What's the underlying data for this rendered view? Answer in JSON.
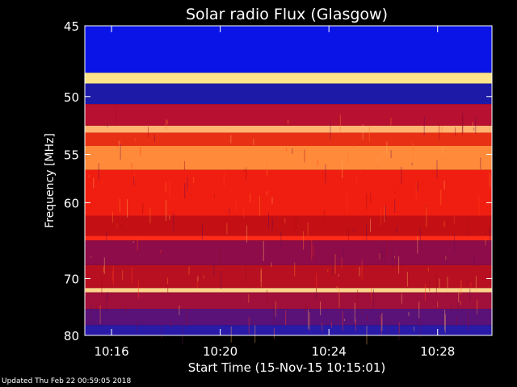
{
  "chart_data": {
    "type": "heatmap",
    "title": "Solar radio Flux (Glasgow)",
    "xlabel": "Start Time (15-Nov-15 10:15:01)",
    "ylabel": "Frequency [MHz]",
    "xlim": [
      "10:15:01",
      "10:30:00"
    ],
    "ylim": [
      45,
      80
    ],
    "y_ticks": [
      45,
      50,
      55,
      60,
      70,
      80
    ],
    "x_ticks": [
      "10:16",
      "10:20",
      "10:24",
      "10:28"
    ],
    "y_scale": "reciprocal",
    "grid": false,
    "bands": [
      {
        "from_mhz": 45,
        "to_mhz": 48.2,
        "color": "#0a14e6"
      },
      {
        "from_mhz": 48.2,
        "to_mhz": 49.0,
        "color": "#ffe58a"
      },
      {
        "from_mhz": 49.0,
        "to_mhz": 50.6,
        "color": "#1d1aa8"
      },
      {
        "from_mhz": 50.6,
        "to_mhz": 52.4,
        "color": "#b81030"
      },
      {
        "from_mhz": 52.4,
        "to_mhz": 53.0,
        "color": "#ffb370"
      },
      {
        "from_mhz": 53.0,
        "to_mhz": 54.2,
        "color": "#e83015"
      },
      {
        "from_mhz": 54.2,
        "to_mhz": 56.5,
        "color": "#ff8a3a"
      },
      {
        "from_mhz": 56.5,
        "to_mhz": 61.5,
        "color": "#f01e10"
      },
      {
        "from_mhz": 61.5,
        "to_mhz": 64.0,
        "color": "#c41014"
      },
      {
        "from_mhz": 64.0,
        "to_mhz": 64.6,
        "color": "#ff2a1a"
      },
      {
        "from_mhz": 64.6,
        "to_mhz": 68.0,
        "color": "#8e0c4a"
      },
      {
        "from_mhz": 68.0,
        "to_mhz": 71.5,
        "color": "#b81020"
      },
      {
        "from_mhz": 71.5,
        "to_mhz": 72.2,
        "color": "#ffd48a"
      },
      {
        "from_mhz": 72.2,
        "to_mhz": 75.0,
        "color": "#a0103a"
      },
      {
        "from_mhz": 75.0,
        "to_mhz": 78.0,
        "color": "#5a1278"
      },
      {
        "from_mhz": 78.0,
        "to_mhz": 80.0,
        "color": "#2a1aa8"
      }
    ]
  },
  "footer": {
    "updated": "Updated Thu Feb 22 00:59:05 2018"
  }
}
